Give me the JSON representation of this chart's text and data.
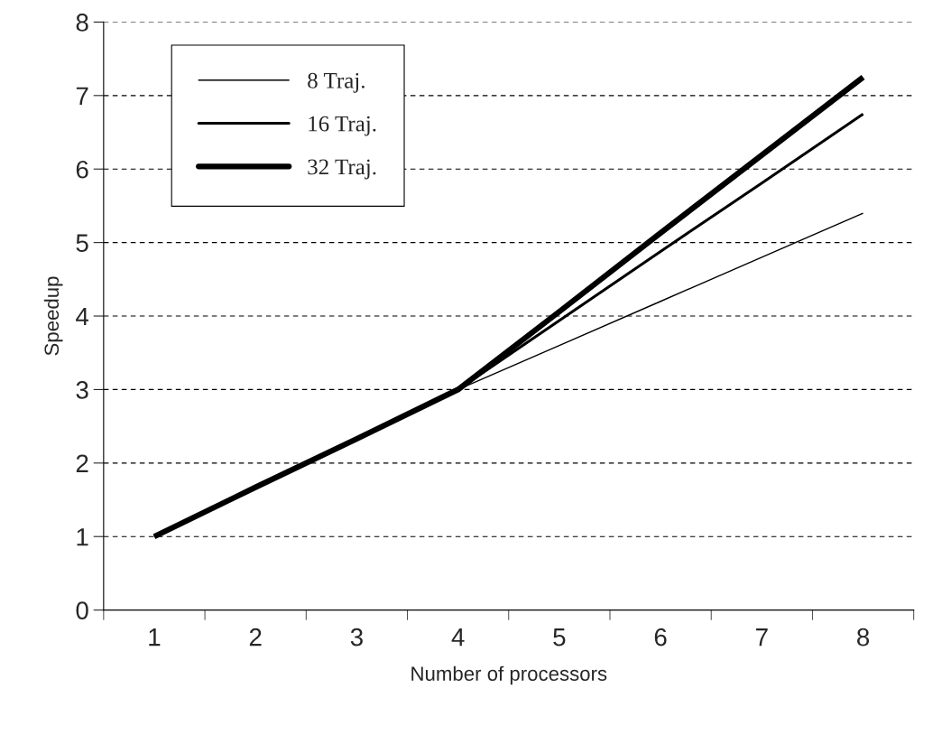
{
  "chart_data": {
    "type": "line",
    "xlabel": "Number of processors",
    "ylabel": "Speedup",
    "categories": [
      "1",
      "2",
      "3",
      "4",
      "5",
      "6",
      "7",
      "8"
    ],
    "ylim": [
      0,
      8
    ],
    "yticks": [
      0,
      1,
      2,
      3,
      4,
      5,
      6,
      7,
      8
    ],
    "grid": "y",
    "legend": "top left",
    "line_style": "solid",
    "marker": "none",
    "series": [
      {
        "name": "8 Traj.",
        "color": "#000000",
        "values": [
          1,
          1.67,
          2.33,
          3,
          3.6,
          4.2,
          4.8,
          5.4
        ]
      },
      {
        "name": "16 Traj.",
        "color": "#000000",
        "values": [
          1,
          1.67,
          2.33,
          3,
          3.94,
          4.88,
          5.81,
          6.75
        ]
      },
      {
        "name": "32 Traj.",
        "color": "#000000",
        "values": [
          1,
          1.67,
          2.33,
          3,
          4.06,
          5.13,
          6.19,
          7.25
        ]
      }
    ]
  }
}
